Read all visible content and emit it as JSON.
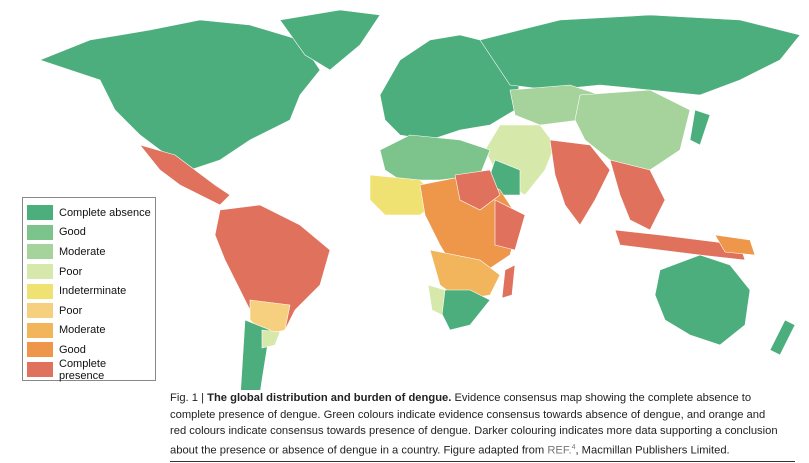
{
  "legend": [
    {
      "label": "Complete absence",
      "color": "#4dae7d"
    },
    {
      "label": "Good",
      "color": "#7cc38c"
    },
    {
      "label": "Moderate",
      "color": "#a6d39c"
    },
    {
      "label": "Poor",
      "color": "#d6e8aa"
    },
    {
      "label": "Indeterminate",
      "color": "#efe273"
    },
    {
      "label": "Poor",
      "color": "#f6d07e"
    },
    {
      "label": "Moderate",
      "color": "#f2b55b"
    },
    {
      "label": "Good",
      "color": "#ee9649"
    },
    {
      "label": "Complete presence",
      "color": "#e0715c"
    }
  ],
  "caption": {
    "label": "Fig. 1 |",
    "title": "The global distribution and burden of dengue.",
    "lines": [
      "Evidence consensus map showing the complete absence to",
      "complete presence of dengue. Green colours indicate evidence consensus towards absence of dengue, and orange and",
      "red colours indicate consensus towards presence of dengue. Darker colouring indicates more data supporting a conclusion",
      "about the presence or absence of dengue in a country. Figure adapted from"
    ],
    "ref": "REF.",
    "ref_number": "4",
    "tail": ", Macmillan Publishers Limited."
  }
}
